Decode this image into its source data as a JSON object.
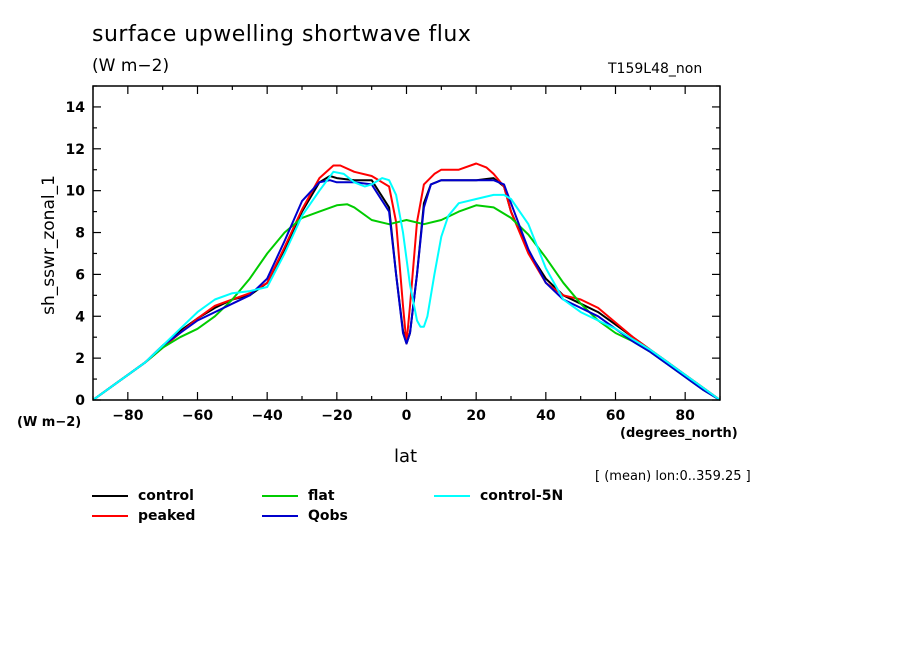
{
  "chart_data": {
    "type": "line",
    "title": "surface upwelling shortwave flux",
    "units": "(W m−2)",
    "experiment": "T159L48_non",
    "ylabel": "sh_sswr_zonal_1",
    "yunits": "(W m−2)",
    "xlabel": "lat",
    "xunits": "(degrees_north)",
    "averaging_note": "[ (mean) lon:0..359.25 ]",
    "xlim": [
      -90,
      90
    ],
    "ylim": [
      0,
      15
    ],
    "xticks": [
      -80,
      -60,
      -40,
      -20,
      0,
      20,
      40,
      60,
      80
    ],
    "yticks": [
      0,
      2,
      4,
      6,
      8,
      10,
      12,
      14
    ],
    "grid": false,
    "series": [
      {
        "name": "control",
        "color": "#000000",
        "x": [
          -90,
          -85,
          -80,
          -75,
          -70,
          -65,
          -60,
          -55,
          -50,
          -45,
          -40,
          -35,
          -30,
          -25,
          -22,
          -20,
          -15,
          -10,
          -5,
          -3,
          -1,
          0,
          1,
          3,
          5,
          7,
          10,
          15,
          20,
          25,
          28,
          30,
          35,
          40,
          45,
          50,
          55,
          60,
          65,
          70,
          75,
          80,
          85,
          90
        ],
        "y": [
          0,
          0.6,
          1.2,
          1.8,
          2.6,
          3.3,
          3.9,
          4.4,
          4.8,
          5.0,
          5.6,
          7.2,
          9.0,
          10.4,
          10.7,
          10.6,
          10.5,
          10.5,
          9.2,
          6.0,
          3.3,
          2.7,
          3.2,
          6.0,
          9.4,
          10.3,
          10.5,
          10.5,
          10.5,
          10.6,
          10.2,
          9.0,
          7.1,
          5.8,
          5.0,
          4.6,
          4.2,
          3.6,
          3.0,
          2.4,
          1.8,
          1.2,
          0.6,
          0
        ]
      },
      {
        "name": "peaked",
        "color": "#ff0000",
        "x": [
          -90,
          -85,
          -80,
          -75,
          -70,
          -65,
          -60,
          -55,
          -50,
          -45,
          -40,
          -35,
          -30,
          -25,
          -21,
          -19,
          -15,
          -10,
          -5,
          -3,
          -1,
          0,
          1,
          3,
          5,
          8,
          10,
          15,
          20,
          23,
          25,
          28,
          30,
          35,
          40,
          45,
          50,
          55,
          60,
          65,
          70,
          75,
          80,
          85,
          90
        ],
        "y": [
          0,
          0.6,
          1.2,
          1.8,
          2.5,
          3.2,
          3.9,
          4.5,
          4.8,
          5.1,
          5.6,
          7.3,
          9.1,
          10.6,
          11.2,
          11.2,
          10.9,
          10.7,
          10.2,
          8.5,
          4.5,
          2.7,
          4.5,
          8.5,
          10.3,
          10.8,
          11.0,
          11.0,
          11.3,
          11.1,
          10.8,
          10.2,
          9.0,
          7.0,
          5.6,
          5.0,
          4.8,
          4.4,
          3.7,
          3.0,
          2.4,
          1.8,
          1.2,
          0.6,
          0
        ]
      },
      {
        "name": "flat",
        "color": "#00cc00",
        "x": [
          -90,
          -85,
          -80,
          -75,
          -70,
          -65,
          -60,
          -55,
          -50,
          -45,
          -40,
          -35,
          -30,
          -25,
          -20,
          -17,
          -15,
          -10,
          -5,
          0,
          5,
          10,
          15,
          20,
          25,
          30,
          35,
          40,
          45,
          50,
          55,
          60,
          65,
          70,
          75,
          80,
          85,
          90
        ],
        "y": [
          0,
          0.6,
          1.2,
          1.8,
          2.5,
          3.0,
          3.4,
          4.0,
          4.8,
          5.8,
          7.0,
          8.0,
          8.7,
          9.0,
          9.3,
          9.35,
          9.2,
          8.6,
          8.4,
          8.6,
          8.4,
          8.6,
          9.0,
          9.3,
          9.2,
          8.7,
          7.9,
          6.8,
          5.6,
          4.6,
          3.8,
          3.2,
          2.8,
          2.3,
          1.7,
          1.1,
          0.5,
          0
        ]
      },
      {
        "name": "Qobs",
        "color": "#0000cc",
        "x": [
          -90,
          -85,
          -80,
          -75,
          -70,
          -65,
          -60,
          -55,
          -50,
          -45,
          -40,
          -35,
          -30,
          -25,
          -22,
          -20,
          -15,
          -10,
          -5,
          -3,
          -1,
          0,
          1,
          3,
          5,
          7,
          10,
          15,
          20,
          25,
          28,
          30,
          35,
          40,
          45,
          50,
          55,
          60,
          65,
          70,
          75,
          80,
          85,
          90
        ],
        "y": [
          0,
          0.6,
          1.2,
          1.8,
          2.6,
          3.2,
          3.8,
          4.2,
          4.6,
          5.0,
          5.8,
          7.6,
          9.5,
          10.4,
          10.5,
          10.4,
          10.4,
          10.3,
          9.0,
          6.0,
          3.2,
          2.7,
          3.2,
          6.0,
          9.2,
          10.3,
          10.5,
          10.5,
          10.5,
          10.5,
          10.3,
          9.4,
          7.2,
          5.6,
          4.8,
          4.4,
          4.0,
          3.4,
          2.8,
          2.3,
          1.7,
          1.1,
          0.5,
          0
        ]
      },
      {
        "name": "control-5N",
        "color": "#00ffff",
        "x": [
          -90,
          -85,
          -80,
          -75,
          -70,
          -65,
          -60,
          -55,
          -50,
          -45,
          -40,
          -35,
          -30,
          -25,
          -21,
          -18,
          -15,
          -12,
          -10,
          -7,
          -5,
          -3,
          -1,
          1,
          3,
          4,
          5,
          6,
          8,
          10,
          12,
          15,
          20,
          25,
          28,
          30,
          35,
          40,
          45,
          50,
          55,
          60,
          65,
          70,
          75,
          80,
          85,
          90
        ],
        "y": [
          0,
          0.6,
          1.2,
          1.8,
          2.6,
          3.4,
          4.2,
          4.8,
          5.1,
          5.2,
          5.4,
          7.0,
          8.8,
          10.0,
          10.9,
          10.8,
          10.4,
          10.2,
          10.3,
          10.6,
          10.5,
          9.8,
          8.0,
          5.5,
          3.8,
          3.5,
          3.5,
          4.0,
          6.0,
          7.8,
          8.8,
          9.4,
          9.6,
          9.8,
          9.8,
          9.6,
          8.4,
          6.3,
          4.8,
          4.2,
          3.8,
          3.4,
          2.9,
          2.4,
          1.8,
          1.2,
          0.6,
          0
        ]
      }
    ]
  }
}
